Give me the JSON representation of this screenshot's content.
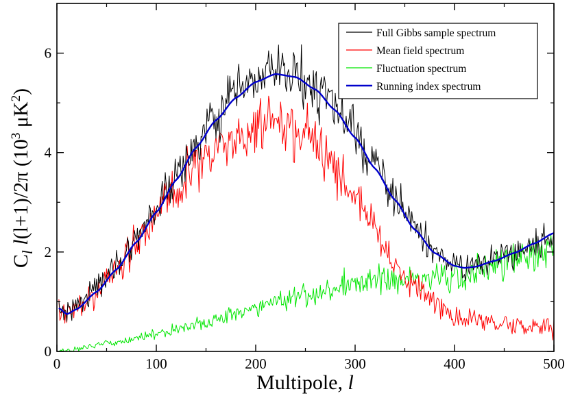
{
  "chart_data": {
    "type": "line",
    "xlabel": {
      "text": "Multipole, ",
      "var": "l"
    },
    "ylabel": {
      "c": "C",
      "sub": "l",
      "mid": " l",
      "rest": "(l+1)/2π (10",
      "exp": "3",
      "unit": " μK",
      "unit_exp": "2",
      "close": ")"
    },
    "xlim": [
      0,
      500
    ],
    "ylim": [
      0,
      7
    ],
    "x_ticks": [
      0,
      100,
      200,
      300,
      400,
      500
    ],
    "y_ticks": [
      0,
      2,
      4,
      6
    ],
    "x_tick_labels": [
      "0",
      "100",
      "200",
      "300",
      "400",
      "500"
    ],
    "y_tick_labels": [
      "0",
      "2",
      "4",
      "6"
    ],
    "legend_position": "top-right",
    "series": [
      {
        "name": "Full Gibbs sample spectrum",
        "color": "#000000",
        "style": "noisy",
        "anchors": [
          [
            2,
            0.85
          ],
          [
            10,
            0.8
          ],
          [
            20,
            0.95
          ],
          [
            40,
            1.3
          ],
          [
            60,
            1.75
          ],
          [
            80,
            2.3
          ],
          [
            100,
            2.9
          ],
          [
            120,
            3.5
          ],
          [
            140,
            4.15
          ],
          [
            160,
            4.7
          ],
          [
            180,
            5.15
          ],
          [
            200,
            5.45
          ],
          [
            220,
            5.6
          ],
          [
            240,
            5.55
          ],
          [
            260,
            5.3
          ],
          [
            280,
            4.9
          ],
          [
            300,
            4.35
          ],
          [
            320,
            3.75
          ],
          [
            340,
            3.1
          ],
          [
            360,
            2.5
          ],
          [
            380,
            2.0
          ],
          [
            400,
            1.72
          ],
          [
            420,
            1.72
          ],
          [
            440,
            1.85
          ],
          [
            460,
            2.0
          ],
          [
            480,
            2.15
          ],
          [
            500,
            2.35
          ]
        ],
        "noise": {
          "base": 0.1,
          "rel": 0.055
        }
      },
      {
        "name": "Mean field spectrum",
        "color": "#ff0000",
        "style": "noisy",
        "anchors": [
          [
            2,
            0.8
          ],
          [
            10,
            0.75
          ],
          [
            20,
            0.9
          ],
          [
            40,
            1.2
          ],
          [
            60,
            1.65
          ],
          [
            80,
            2.15
          ],
          [
            100,
            2.7
          ],
          [
            120,
            3.2
          ],
          [
            140,
            3.7
          ],
          [
            160,
            4.05
          ],
          [
            180,
            4.3
          ],
          [
            200,
            4.45
          ],
          [
            220,
            4.5
          ],
          [
            240,
            4.4
          ],
          [
            260,
            4.1
          ],
          [
            280,
            3.65
          ],
          [
            300,
            3.1
          ],
          [
            320,
            2.45
          ],
          [
            340,
            1.8
          ],
          [
            360,
            1.3
          ],
          [
            380,
            0.95
          ],
          [
            400,
            0.7
          ],
          [
            420,
            0.6
          ],
          [
            440,
            0.55
          ],
          [
            460,
            0.5
          ],
          [
            480,
            0.5
          ],
          [
            500,
            0.5
          ]
        ],
        "noise": {
          "base": 0.12,
          "rel": 0.07
        }
      },
      {
        "name": "Fluctuation spectrum",
        "color": "#00e600",
        "style": "noisy",
        "anchors": [
          [
            2,
            0.0
          ],
          [
            20,
            0.05
          ],
          [
            50,
            0.15
          ],
          [
            100,
            0.35
          ],
          [
            150,
            0.6
          ],
          [
            200,
            0.9
          ],
          [
            250,
            1.15
          ],
          [
            300,
            1.35
          ],
          [
            320,
            1.42
          ],
          [
            340,
            1.45
          ],
          [
            360,
            1.45
          ],
          [
            380,
            1.45
          ],
          [
            400,
            1.5
          ],
          [
            420,
            1.6
          ],
          [
            440,
            1.75
          ],
          [
            460,
            1.85
          ],
          [
            480,
            1.95
          ],
          [
            500,
            2.1
          ]
        ],
        "noise": {
          "base": 0.04,
          "rel": 0.11
        }
      },
      {
        "name": "Running index spectrum",
        "color": "#0000cc",
        "style": "smooth",
        "anchors": [
          [
            2,
            0.87
          ],
          [
            10,
            0.75
          ],
          [
            20,
            0.85
          ],
          [
            40,
            1.2
          ],
          [
            60,
            1.65
          ],
          [
            80,
            2.2
          ],
          [
            100,
            2.8
          ],
          [
            120,
            3.45
          ],
          [
            140,
            4.1
          ],
          [
            160,
            4.65
          ],
          [
            180,
            5.1
          ],
          [
            200,
            5.42
          ],
          [
            220,
            5.58
          ],
          [
            240,
            5.52
          ],
          [
            260,
            5.27
          ],
          [
            280,
            4.85
          ],
          [
            300,
            4.3
          ],
          [
            320,
            3.68
          ],
          [
            340,
            3.05
          ],
          [
            360,
            2.45
          ],
          [
            380,
            1.98
          ],
          [
            400,
            1.72
          ],
          [
            410,
            1.68
          ],
          [
            420,
            1.7
          ],
          [
            440,
            1.82
          ],
          [
            460,
            1.98
          ],
          [
            480,
            2.17
          ],
          [
            500,
            2.38
          ]
        ]
      }
    ]
  }
}
